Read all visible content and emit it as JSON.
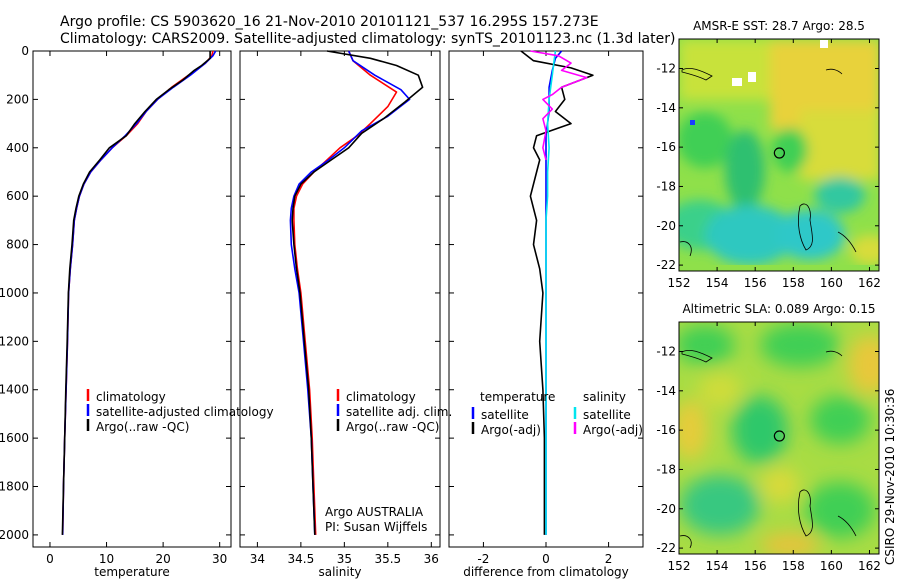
{
  "header": {
    "line1": "Argo profile: CS 5903620_16 21-Nov-2010 20101121_537 16.295S 157.273E",
    "line2": "Climatology: CARS2009. Satellite-adjusted climatology: synTS_20101123.nc (1.3d later)"
  },
  "footer": {
    "credit": "CSIRO 29-Nov-2010 10:30:36"
  },
  "chart_data": [
    {
      "id": "temperature",
      "type": "line",
      "xlabel": "temperature",
      "ylabel": "",
      "xlim": [
        -3,
        32
      ],
      "ylim": [
        2050,
        0
      ],
      "xticks": [
        0,
        10,
        20,
        30
      ],
      "yticks": [
        0,
        200,
        400,
        600,
        800,
        1000,
        1200,
        1400,
        1600,
        1800,
        2000
      ],
      "legend": {
        "position": "lower-middle",
        "entries": [
          "climatology",
          "satellite-adjusted climatology",
          "Argo(..raw -QC)"
        ]
      },
      "series": [
        {
          "name": "climatology",
          "color": "#ff0000",
          "points": [
            [
              28.8,
              0
            ],
            [
              28.6,
              20
            ],
            [
              27.5,
              50
            ],
            [
              24.5,
              100
            ],
            [
              21.5,
              150
            ],
            [
              19,
              200
            ],
            [
              17,
              250
            ],
            [
              15.5,
              300
            ],
            [
              13.5,
              350
            ],
            [
              11,
              400
            ],
            [
              9,
              450
            ],
            [
              7.2,
              500
            ],
            [
              6,
              550
            ],
            [
              5.2,
              600
            ],
            [
              4.7,
              650
            ],
            [
              4.3,
              700
            ],
            [
              4,
              800
            ],
            [
              3.6,
              900
            ],
            [
              3.3,
              1000
            ],
            [
              3.1,
              1200
            ],
            [
              2.85,
              1400
            ],
            [
              2.6,
              1600
            ],
            [
              2.4,
              1800
            ],
            [
              2.25,
              2000
            ]
          ]
        },
        {
          "name": "satellite-adjusted climatology",
          "color": "#0000ff",
          "points": [
            [
              29.3,
              0
            ],
            [
              28.8,
              20
            ],
            [
              27.5,
              50
            ],
            [
              24.8,
              100
            ],
            [
              21.8,
              150
            ],
            [
              19,
              200
            ],
            [
              17,
              250
            ],
            [
              15.3,
              300
            ],
            [
              13.3,
              350
            ],
            [
              11,
              400
            ],
            [
              9,
              450
            ],
            [
              7.2,
              500
            ],
            [
              6,
              550
            ],
            [
              5.2,
              600
            ],
            [
              4.7,
              650
            ],
            [
              4.3,
              700
            ],
            [
              4,
              800
            ],
            [
              3.6,
              900
            ],
            [
              3.3,
              1000
            ],
            [
              3.1,
              1200
            ],
            [
              2.85,
              1400
            ],
            [
              2.6,
              1600
            ],
            [
              2.4,
              1800
            ],
            [
              2.25,
              2000
            ]
          ]
        },
        {
          "name": "Argo(..raw -QC)",
          "color": "#000000",
          "points": [
            [
              28.3,
              0
            ],
            [
              28.3,
              30
            ],
            [
              26.8,
              60
            ],
            [
              25.5,
              80
            ],
            [
              23.5,
              120
            ],
            [
              21,
              160
            ],
            [
              18.8,
              200
            ],
            [
              16.8,
              250
            ],
            [
              15,
              300
            ],
            [
              13.5,
              350
            ],
            [
              10.5,
              400
            ],
            [
              8.8,
              450
            ],
            [
              7,
              500
            ],
            [
              5.9,
              550
            ],
            [
              5.1,
              600
            ],
            [
              4.6,
              650
            ],
            [
              4.2,
              700
            ],
            [
              3.9,
              800
            ],
            [
              3.5,
              900
            ],
            [
              3.25,
              1000
            ],
            [
              3.05,
              1200
            ],
            [
              2.8,
              1400
            ],
            [
              2.6,
              1600
            ],
            [
              2.4,
              1800
            ],
            [
              2.2,
              2000
            ]
          ]
        }
      ]
    },
    {
      "id": "salinity",
      "type": "line",
      "xlabel": "salinity",
      "ylabel": "",
      "xlim": [
        33.8,
        36.1
      ],
      "ylim": [
        2050,
        0
      ],
      "xticks": [
        34,
        34.5,
        35,
        35.5,
        36
      ],
      "yticks": [
        0,
        200,
        400,
        600,
        800,
        1000,
        1200,
        1400,
        1600,
        1800,
        2000
      ],
      "legend": {
        "position": "lower-middle",
        "entries": [
          "climatology",
          "satellite adj. clim.",
          "Argo(..raw -QC)"
        ]
      },
      "annotation": {
        "line1": "Argo AUSTRALIA",
        "line2": "PI: Susan Wijffels"
      },
      "series": [
        {
          "name": "climatology",
          "color": "#ff0000",
          "points": [
            [
              35.05,
              0
            ],
            [
              35.1,
              40
            ],
            [
              35.3,
              100
            ],
            [
              35.6,
              170
            ],
            [
              35.5,
              230
            ],
            [
              35.3,
              300
            ],
            [
              35.15,
              350
            ],
            [
              34.95,
              400
            ],
            [
              34.8,
              450
            ],
            [
              34.65,
              500
            ],
            [
              34.52,
              550
            ],
            [
              34.45,
              600
            ],
            [
              34.42,
              650
            ],
            [
              34.42,
              700
            ],
            [
              34.43,
              800
            ],
            [
              34.46,
              900
            ],
            [
              34.5,
              1000
            ],
            [
              34.55,
              1200
            ],
            [
              34.6,
              1400
            ],
            [
              34.63,
              1600
            ],
            [
              34.65,
              1800
            ],
            [
              34.67,
              2000
            ]
          ]
        },
        {
          "name": "satellite adj. clim.",
          "color": "#0000ff",
          "points": [
            [
              35.05,
              0
            ],
            [
              35.1,
              40
            ],
            [
              35.35,
              100
            ],
            [
              35.65,
              160
            ],
            [
              35.75,
              200
            ],
            [
              35.5,
              270
            ],
            [
              35.2,
              330
            ],
            [
              35,
              400
            ],
            [
              34.82,
              450
            ],
            [
              34.62,
              500
            ],
            [
              34.48,
              550
            ],
            [
              34.42,
              600
            ],
            [
              34.39,
              650
            ],
            [
              34.38,
              700
            ],
            [
              34.39,
              800
            ],
            [
              34.43,
              900
            ],
            [
              34.48,
              1000
            ],
            [
              34.53,
              1200
            ],
            [
              34.58,
              1400
            ],
            [
              34.62,
              1600
            ],
            [
              34.64,
              1800
            ],
            [
              34.66,
              2000
            ]
          ]
        },
        {
          "name": "Argo(..raw -QC)",
          "color": "#000000",
          "points": [
            [
              34.8,
              0
            ],
            [
              35.3,
              30
            ],
            [
              35.6,
              60
            ],
            [
              35.85,
              100
            ],
            [
              35.9,
              150
            ],
            [
              35.7,
              210
            ],
            [
              35.45,
              280
            ],
            [
              35.2,
              340
            ],
            [
              35.05,
              400
            ],
            [
              34.85,
              450
            ],
            [
              34.65,
              500
            ],
            [
              34.5,
              550
            ],
            [
              34.43,
              600
            ],
            [
              34.41,
              650
            ],
            [
              34.4,
              700
            ],
            [
              34.42,
              800
            ],
            [
              34.45,
              900
            ],
            [
              34.49,
              1000
            ],
            [
              34.54,
              1200
            ],
            [
              34.59,
              1400
            ],
            [
              34.62,
              1600
            ],
            [
              34.64,
              1800
            ],
            [
              34.66,
              2000
            ]
          ]
        }
      ]
    },
    {
      "id": "difference",
      "type": "line",
      "xlabel": "difference from climatology",
      "ylabel": "",
      "xlim": [
        -3.1,
        3.1
      ],
      "ylim": [
        2050,
        0
      ],
      "xticks": [
        -2,
        0,
        2
      ],
      "yticks": [
        0,
        200,
        400,
        600,
        800,
        1000,
        1200,
        1400,
        1600,
        1800,
        2000
      ],
      "legend": {
        "position": "lower-middle",
        "left_title": "temperature",
        "right_title": "salinity",
        "entries": [
          "satellite",
          "Argo(-adj)",
          "satellite",
          "Argo(-adj)"
        ]
      },
      "series": [
        {
          "name": "temperature satellite",
          "color": "#0000ff",
          "points": [
            [
              0.5,
              0
            ],
            [
              0.3,
              30
            ],
            [
              0.2,
              80
            ],
            [
              0.1,
              150
            ],
            [
              0.1,
              250
            ],
            [
              0,
              350
            ],
            [
              0,
              500
            ],
            [
              0,
              800
            ],
            [
              0,
              1200
            ],
            [
              0,
              2000
            ]
          ]
        },
        {
          "name": "temperature Argo(-adj)",
          "color": "#000000",
          "points": [
            [
              -0.8,
              0
            ],
            [
              -0.4,
              40
            ],
            [
              0.8,
              70
            ],
            [
              1.5,
              100
            ],
            [
              0.5,
              150
            ],
            [
              0.6,
              200
            ],
            [
              0.3,
              250
            ],
            [
              0.8,
              300
            ],
            [
              -0.3,
              350
            ],
            [
              -0.4,
              400
            ],
            [
              -0.2,
              450
            ],
            [
              -0.3,
              500
            ],
            [
              -0.5,
              600
            ],
            [
              -0.3,
              700
            ],
            [
              -0.4,
              800
            ],
            [
              -0.2,
              900
            ],
            [
              -0.1,
              1000
            ],
            [
              -0.2,
              1200
            ],
            [
              -0.1,
              1400
            ],
            [
              -0.05,
              1600
            ],
            [
              -0.05,
              1800
            ],
            [
              -0.05,
              2000
            ]
          ]
        },
        {
          "name": "salinity satellite",
          "color": "#00e5ee",
          "points": [
            [
              0.3,
              0
            ],
            [
              0.25,
              50
            ],
            [
              0.2,
              100
            ],
            [
              0.1,
              200
            ],
            [
              0.05,
              300
            ],
            [
              0.1,
              400
            ],
            [
              0.05,
              500
            ],
            [
              0.05,
              600
            ],
            [
              0,
              700
            ],
            [
              0,
              800
            ],
            [
              0,
              1000
            ],
            [
              0,
              2000
            ]
          ]
        },
        {
          "name": "salinity Argo(-adj)",
          "color": "#ff00ff",
          "points": [
            [
              -0.5,
              0
            ],
            [
              0.4,
              20
            ],
            [
              0.8,
              50
            ],
            [
              0.5,
              80
            ],
            [
              1.3,
              110
            ],
            [
              0.5,
              150
            ],
            [
              0.2,
              180
            ],
            [
              -0.1,
              200
            ],
            [
              0.2,
              240
            ],
            [
              -0.1,
              280
            ],
            [
              0,
              330
            ],
            [
              -0.1,
              400
            ],
            [
              0,
              450
            ]
          ]
        }
      ]
    },
    {
      "id": "amsr-sst-map",
      "type": "heatmap",
      "title": "AMSR-E SST: 28.7 Argo: 28.5",
      "xlim": [
        152,
        162.5
      ],
      "ylim": [
        -22.3,
        -10.5
      ],
      "xticks": [
        152,
        154,
        156,
        158,
        160,
        162
      ],
      "yticks": [
        -12,
        -14,
        -16,
        -18,
        -20,
        -22
      ],
      "marker": {
        "lon": 157.27,
        "lat": -16.3
      }
    },
    {
      "id": "altimetric-sla-map",
      "type": "heatmap",
      "title": "Altimetric SLA: 0.089 Argo: 0.15",
      "xlim": [
        152,
        162.5
      ],
      "ylim": [
        -22.3,
        -10.5
      ],
      "xticks": [
        152,
        154,
        156,
        158,
        160,
        162
      ],
      "yticks": [
        -12,
        -14,
        -16,
        -18,
        -20,
        -22
      ],
      "marker": {
        "lon": 157.27,
        "lat": -16.3
      }
    }
  ]
}
